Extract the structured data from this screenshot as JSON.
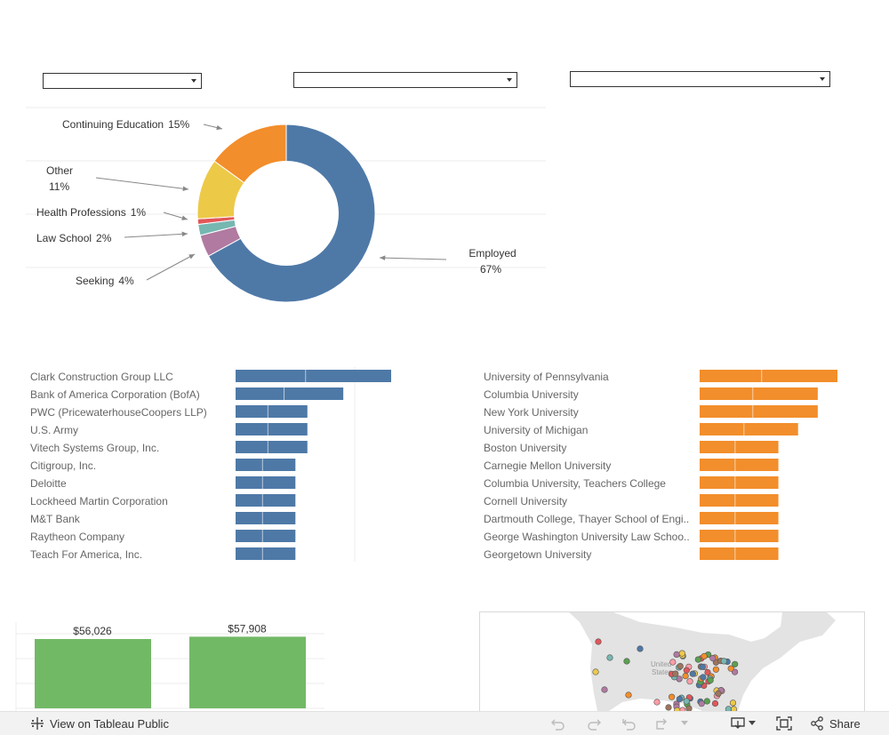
{
  "donut": {
    "slices": [
      {
        "label": "Employed",
        "pct": 67,
        "display": "67%",
        "color": "#4e79a7"
      },
      {
        "label": "Seeking",
        "pct": 4,
        "display": "4%",
        "color": "#b07aa1"
      },
      {
        "label": "Law School",
        "pct": 2,
        "display": "2%",
        "color": "#76b7b2"
      },
      {
        "label": "Health Professions",
        "pct": 1,
        "display": "1%",
        "color": "#e15759"
      },
      {
        "label": "Other",
        "pct": 11,
        "display": "11%",
        "color": "#edc948"
      },
      {
        "label": "Continuing Education",
        "pct": 15,
        "display": "15%",
        "color": "#f28e2b"
      }
    ]
  },
  "chart_data": [
    {
      "type": "pie",
      "labels": [
        "Employed",
        "Seeking",
        "Law School",
        "Health Professions",
        "Other",
        "Continuing Education"
      ],
      "values": [
        67,
        4,
        2,
        1,
        11,
        15
      ],
      "units": "%"
    },
    {
      "type": "bar",
      "orientation": "horizontal",
      "categories": [
        "Clark Construction Group LLC",
        "Bank of America Corporation (BofA)",
        "PWC (PricewaterhouseCoopers LLP)",
        "U.S. Army",
        "Vitech Systems Group, Inc.",
        "Citigroup, Inc.",
        "Deloitte",
        "Lockheed Martin Corporation",
        "M&T Bank",
        "Raytheon Company",
        "Teach For America, Inc."
      ],
      "values": [
        13,
        9,
        6,
        6,
        6,
        5,
        5,
        5,
        5,
        5,
        5
      ],
      "color": "#4e79a7"
    },
    {
      "type": "bar",
      "orientation": "horizontal",
      "categories": [
        "University of Pennsylvania",
        "Columbia University",
        "New York University",
        "University of Michigan",
        "Boston University",
        "Carnegie Mellon University",
        "Columbia University, Teachers College",
        "Cornell University",
        "Dartmouth College, Thayer School of Engi..",
        "George Washington University Law Schoo..",
        "Georgetown University"
      ],
      "values": [
        7,
        6,
        6,
        5,
        4,
        4,
        4,
        4,
        4,
        4,
        4
      ],
      "color": "#f28e2b"
    },
    {
      "type": "bar",
      "categories": [
        "",
        ""
      ],
      "values": [
        56026,
        57908
      ],
      "labels": [
        "$56,026",
        "$57,908"
      ],
      "color": "#72b966"
    }
  ],
  "map": {
    "label_united": "United",
    "label_states": "States"
  },
  "footer": {
    "view_label": "View on Tableau Public",
    "share_label": "Share"
  },
  "colors": {
    "employers": "#4e79a7",
    "schools": "#f28e2b",
    "salary": "#72b966"
  }
}
